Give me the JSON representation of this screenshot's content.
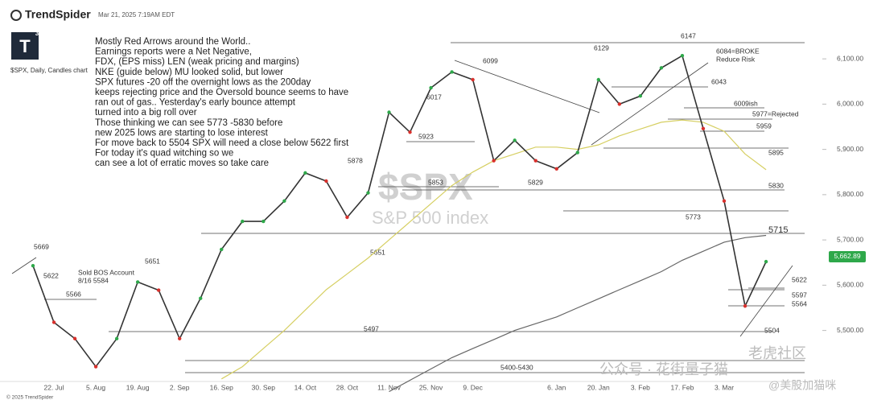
{
  "header": {
    "brand": "TrendSpider",
    "timestamp": "Mar 21, 2025 7:19AM EDT",
    "symbol_line": "$SPX, Daily, Candles chart",
    "logo": "T",
    "logo_sup": "3",
    "copyright": "© 2025 TrendSpider"
  },
  "note": [
    "Mostly Red Arrows around the World..",
    "Earnings reports were a Net Negative,",
    "FDX, (EPS miss) LEN (weak pricing and margins)",
    "NKE (guide below) MU looked solid, but lower",
    "SPX futures -20 off the overnight lows as the 200day",
    "keeps rejecting price and the Oversold bounce seems to have",
    "ran out of gas.. Yesterday's early bounce attempt",
    "turned into a big roll over",
    "Those thinking we can see 5773 -5830 before",
    "new 2025 lows are starting to lose interest",
    "For move back to 5504 SPX will need a close below 5622 first",
    "For today it's quad witching so we",
    "can see a lot of erratic moves so take care"
  ],
  "watermark": {
    "symbol": "$SPX",
    "name": "S&P 500 index",
    "wechat": "公众号 · 花街量子猫",
    "community": "老虎社区",
    "handle": "@美股加猫咪"
  },
  "chart_data": {
    "type": "line",
    "categories": [
      null,
      "22. Jul",
      null,
      "5. Aug",
      null,
      "19. Aug",
      null,
      "2. Sep",
      null,
      "16. Sep",
      null,
      "30. Sep",
      null,
      "14. Oct",
      null,
      "28. Oct",
      null,
      "11. Nov",
      null,
      "25. Nov",
      null,
      "9. Dec",
      null,
      null,
      null,
      "6. Jan",
      null,
      "20. Jan",
      null,
      "3. Feb",
      null,
      "17. Feb",
      null,
      "3. Mar",
      null,
      null
    ],
    "series": [
      {
        "color": "#333333",
        "values": [
          5643,
          5518,
          5482,
          5420,
          5482,
          5607,
          5589,
          5482,
          5571,
          5679,
          5741,
          5741,
          5786,
          5848,
          5830,
          5750,
          5804,
          5982,
          5938,
          6036,
          6071,
          6054,
          5875,
          5920,
          5875,
          5857,
          5893,
          6054,
          6000,
          6018,
          6080,
          6107,
          5946,
          5786,
          5554,
          5652
        ]
      },
      {
        "color": "#d6cf62",
        "values": [
          null,
          null,
          null,
          null,
          null,
          null,
          null,
          null,
          null,
          5393,
          5420,
          5460,
          5500,
          5545,
          5590,
          5625,
          5660,
          5700,
          5740,
          5780,
          5820,
          5850,
          5875,
          5890,
          5905,
          5905,
          5900,
          5910,
          5930,
          5945,
          5960,
          5965,
          5960,
          5940,
          5890,
          5855
        ]
      },
      {
        "color": "#666666",
        "values": [
          null,
          null,
          null,
          null,
          null,
          null,
          null,
          null,
          null,
          null,
          null,
          null,
          null,
          null,
          null,
          null,
          null,
          5365,
          5390,
          5415,
          5440,
          5460,
          5480,
          5500,
          5515,
          5530,
          5550,
          5570,
          5590,
          5610,
          5630,
          5655,
          5675,
          5695,
          5705,
          5710
        ]
      }
    ],
    "ylim": [
      5350,
      6230
    ],
    "yticks": [
      {
        "value": 5500,
        "label": "5,500.00"
      },
      {
        "value": 5600,
        "label": "5,600.00"
      },
      {
        "value": 5700,
        "label": "5,700.00"
      },
      {
        "value": 5800,
        "label": "5,800.00"
      },
      {
        "value": 5900,
        "label": "5,900.00"
      },
      {
        "value": 6000,
        "label": "6,000.00"
      },
      {
        "value": 6100,
        "label": "6,100.00"
      }
    ],
    "last_price": {
      "value": 5662.89,
      "label": "5,662.89",
      "color": "#2ea84a"
    },
    "annotations": [
      "6147",
      "6129",
      "6099",
      "6084=BROKE",
      "Reduce Risk",
      "6043",
      "6017",
      "6009ish",
      "5977=Rejected",
      "5959",
      "5923",
      "5895",
      "5878",
      "5853",
      "5829",
      "5830",
      "5773",
      "5715",
      "5669",
      "5651",
      "5651",
      "5622",
      "5622",
      "5566",
      "5597",
      "5564",
      "5504",
      "5497",
      "5400-5430",
      "Sold BOS Account",
      "8/16 5584"
    ]
  }
}
